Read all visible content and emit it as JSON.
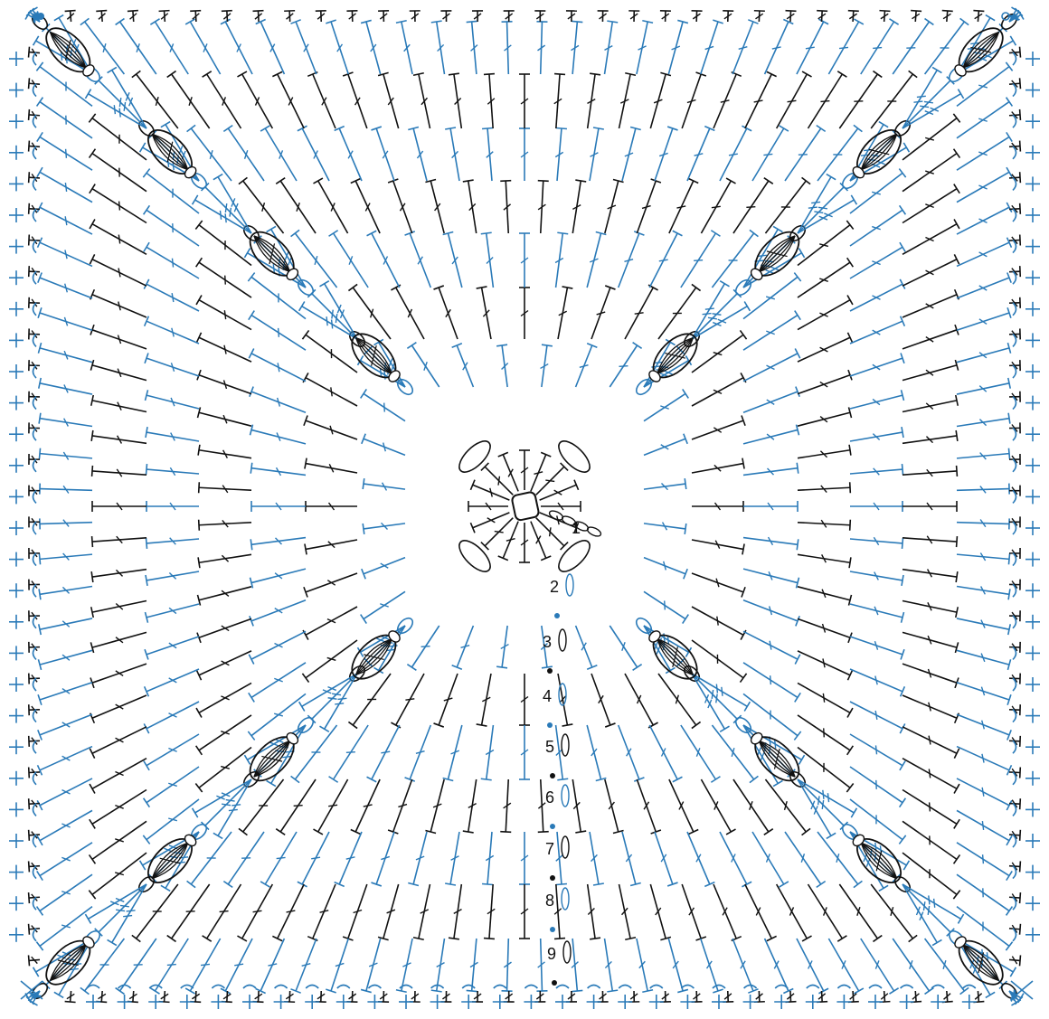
{
  "diagram": {
    "type": "crochet-chart",
    "colors": {
      "black_rounds": "#111111",
      "blue_rounds": "#2a7ab8",
      "background": "#ffffff"
    },
    "round_labels": [
      "1",
      "2",
      "3",
      "4",
      "5",
      "6",
      "7",
      "8",
      "9"
    ],
    "symbols": {
      "chain": "oval",
      "double_crochet": "t-stem-with-slash",
      "treble_crochet": "t-stem-with-double-slash",
      "single_crochet": "plus",
      "cluster": "bobble",
      "slip_stitch": "dot"
    }
  }
}
